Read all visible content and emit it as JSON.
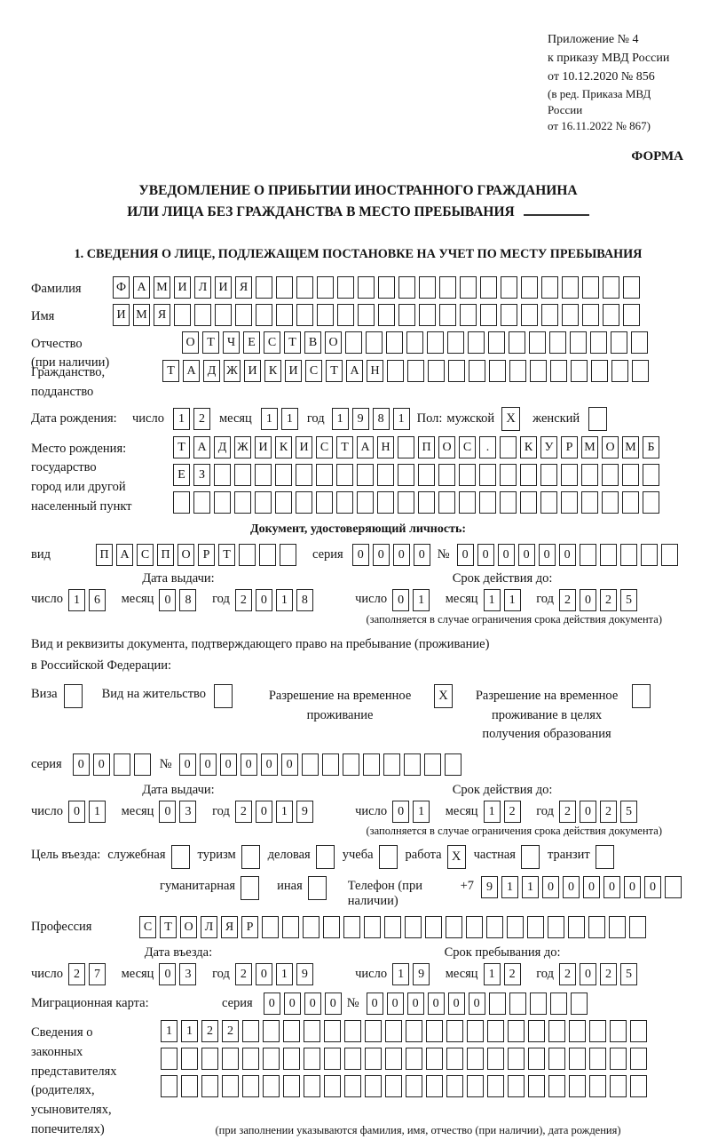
{
  "labels": {
    "day": "число",
    "month": "месяц",
    "year": "год"
  },
  "header": {
    "line1": "Приложение № 4",
    "line2": "к приказу МВД России",
    "line3": "от 10.12.2020 № 856",
    "line4": "(в ред. Приказа МВД России",
    "line5": "от 16.11.2022 № 867)",
    "forma": "ФОРМА"
  },
  "title": {
    "line1": "УВЕДОМЛЕНИЕ О ПРИБЫТИИ ИНОСТРАННОГО ГРАЖДАНИНА",
    "line2": "ИЛИ ЛИЦА БЕЗ ГРАЖДАНСТВА В МЕСТО ПРЕБЫВАНИЯ"
  },
  "section1": {
    "heading": "1. СВЕДЕНИЯ О ЛИЦЕ, ПОДЛЕЖАЩЕМ ПОСТАНОВКЕ НА УЧЕТ ПО МЕСТУ ПРЕБЫВАНИЯ",
    "surname": {
      "label": "Фамилия",
      "cells": {
        "v": "ФАМИЛИЯ",
        "n": 26
      }
    },
    "given_name": {
      "label": "Имя",
      "cells": {
        "v": "ИМЯ",
        "n": 26
      }
    },
    "patronymic": {
      "label1": "Отчество",
      "label2": "(при наличии)",
      "cells": {
        "v": "ОТЧЕСТВО",
        "n": 23
      }
    },
    "citizenship": {
      "label1": "Гражданство,",
      "label2": "подданство",
      "cells": {
        "v": "ТАДЖИКИСТАН",
        "n": 24
      }
    },
    "birth_date": {
      "label": "Дата рождения:",
      "day": {
        "v": "12",
        "n": 2
      },
      "month": {
        "v": "11",
        "n": 2
      },
      "year": {
        "v": "1981",
        "n": 4
      },
      "sex_label": "Пол:",
      "male_label": "мужской",
      "male_checked": true,
      "female_label": "женский",
      "female_checked": false
    },
    "birth_place": {
      "label1": "Место рождения:",
      "label2": "государство",
      "label3": "город или другой",
      "label4": "населенный пункт",
      "row1": {
        "v": "ТАДЖИКИСТАН ПОС. КУРМОМБ",
        "n": 24
      },
      "row2": {
        "v": "ЕЗ",
        "n": 24
      },
      "row3": {
        "v": "",
        "n": 24
      }
    }
  },
  "identity_doc": {
    "heading": "Документ, удостоверяющий личность:",
    "kind_label": "вид",
    "kind": {
      "v": "ПАСПОРТ",
      "n": 10
    },
    "series_label": "серия",
    "series": {
      "v": "0000",
      "n": 4
    },
    "number_label": "№",
    "number": {
      "v": "000000",
      "n": 11
    },
    "issue": {
      "title": "Дата выдачи:",
      "day": {
        "v": "16",
        "n": 2
      },
      "month": {
        "v": "08",
        "n": 2
      },
      "year": {
        "v": "2018",
        "n": 4
      }
    },
    "valid": {
      "title": "Срок действия до:",
      "day": {
        "v": "01",
        "n": 2
      },
      "month": {
        "v": "11",
        "n": 2
      },
      "year": {
        "v": "2025",
        "n": 4
      }
    },
    "note": "(заполняется в случае ограничения срока действия документа)"
  },
  "stay_doc": {
    "intro1": "Вид и реквизиты документа, подтверждающего право на пребывание (проживание)",
    "intro2": "в Российской Федерации:",
    "options": [
      {
        "label": "Виза",
        "checked": false
      },
      {
        "label": "Вид на жительство",
        "checked": false
      },
      {
        "lines": [
          "Разрешение на временное",
          "проживание"
        ],
        "checked": true
      },
      {
        "lines": [
          "Разрешение на временное",
          "проживание в целях",
          "получения образования"
        ],
        "checked": false
      }
    ],
    "series_label": "серия",
    "series": {
      "v": "00",
      "n": 4
    },
    "number_label": "№",
    "number": {
      "v": "000000",
      "n": 14
    },
    "issue": {
      "title": "Дата выдачи:",
      "day": {
        "v": "01",
        "n": 2
      },
      "month": {
        "v": "03",
        "n": 2
      },
      "year": {
        "v": "2019",
        "n": 4
      }
    },
    "valid": {
      "title": "Срок действия до:",
      "day": {
        "v": "01",
        "n": 2
      },
      "month": {
        "v": "12",
        "n": 2
      },
      "year": {
        "v": "2025",
        "n": 4
      }
    },
    "note": "(заполняется в случае ограничения срока действия документа)"
  },
  "entry": {
    "purpose_label": "Цель въезда:",
    "purposes": [
      {
        "label": "служебная",
        "checked": false
      },
      {
        "label": "туризм",
        "checked": false
      },
      {
        "label": "деловая",
        "checked": false
      },
      {
        "label": "учеба",
        "checked": false
      },
      {
        "label": "работа",
        "checked": true
      },
      {
        "label": "частная",
        "checked": false
      },
      {
        "label": "транзит",
        "checked": false
      },
      {
        "label": "гуманитарная",
        "checked": false
      },
      {
        "label": "иная",
        "checked": false
      }
    ],
    "phone_label": "Телефон (при наличии)",
    "phone_prefix": "+7",
    "phone": {
      "v": "911000000",
      "n": 10
    },
    "profession_label": "Профессия",
    "profession": {
      "v": "СТОЛЯР",
      "n": 25
    },
    "entry_date": {
      "title": "Дата въезда:",
      "day": {
        "v": "27",
        "n": 2
      },
      "month": {
        "v": "03",
        "n": 2
      },
      "year": {
        "v": "2019",
        "n": 4
      }
    },
    "stay_until": {
      "title": "Срок пребывания до:",
      "day": {
        "v": "19",
        "n": 2
      },
      "month": {
        "v": "12",
        "n": 2
      },
      "year": {
        "v": "2025",
        "n": 4
      }
    },
    "migration_card": {
      "label": "Миграционная карта:",
      "series_label": "серия",
      "series": {
        "v": "0000",
        "n": 4
      },
      "number_label": "№",
      "number": {
        "v": "000000",
        "n": 11
      }
    },
    "representatives": {
      "label1": "Сведения о",
      "label2": "законных",
      "label3": "представителях",
      "label4": "(родителях,",
      "label5": "усыновителях,",
      "label6": "попечителях)",
      "row1": {
        "v": "1122",
        "n": 24
      },
      "row2": {
        "v": "",
        "n": 24
      },
      "row3": {
        "v": "",
        "n": 24
      },
      "note": "(при заполнении указываются фамилия, имя, отчество (при наличии), дата рождения)"
    }
  }
}
